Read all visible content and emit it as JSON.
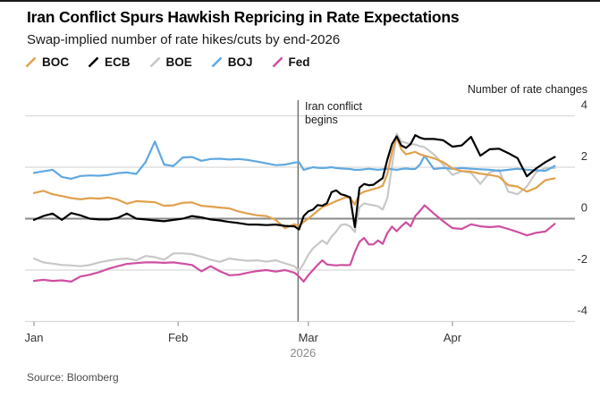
{
  "header": {
    "title": "Iran Conflict Spurs Hawkish Repricing in Rate Expectations",
    "subtitle": "Swap-implied number of rate hikes/cuts by end-2026"
  },
  "legend": [
    {
      "label": "BOC",
      "color": "#E0A14E"
    },
    {
      "label": "ECB",
      "color": "#000000"
    },
    {
      "label": "BOE",
      "color": "#C8C8C8"
    },
    {
      "label": "BOJ",
      "color": "#5FA8E0"
    },
    {
      "label": "Fed",
      "color": "#CE4FA0"
    }
  ],
  "axis_unit_label": "Number of rate changes",
  "annotation": {
    "line1": "Iran conflict",
    "line2": "begins"
  },
  "source": "Source: Bloomberg",
  "chart_data": {
    "type": "line",
    "title": "Iran Conflict Spurs Hawkish Repricing in Rate Expectations",
    "subtitle": "Swap-implied number of rate hikes/cuts by end-2026",
    "ylabel": "Number of rate changes",
    "ylim": [
      -4,
      4
    ],
    "y_ticks": [
      4,
      2,
      0,
      -2,
      -4
    ],
    "grid": true,
    "legend_position": "top-left",
    "x_unit": "days since Jan 1, 2026",
    "x_ticks": [
      {
        "label": "Jan",
        "day": 0
      },
      {
        "label": "Feb",
        "day": 31
      },
      {
        "label": "Mar",
        "day": 59
      },
      {
        "label": "Apr",
        "day": 90
      }
    ],
    "year_label": "2026",
    "event_line": {
      "day": 56.8,
      "label": "Iran conflict begins"
    },
    "days": [
      0,
      2,
      4,
      6,
      8,
      10,
      12,
      14,
      16,
      18,
      20,
      22,
      24,
      26,
      28,
      30,
      32,
      34,
      36,
      38,
      40,
      42,
      44,
      46,
      48,
      50,
      52,
      54,
      56,
      57,
      58,
      59,
      60,
      61,
      62,
      63,
      64,
      65,
      66,
      67,
      68,
      69,
      70,
      71,
      72,
      73,
      74,
      75,
      76,
      77,
      78,
      79,
      80,
      81,
      82,
      83,
      84,
      86,
      88,
      90,
      92,
      94,
      96,
      98,
      100,
      102,
      104,
      106,
      108,
      110,
      112
    ],
    "series": [
      {
        "name": "BOC",
        "color": "#E0A14E",
        "values": [
          1.0,
          1.08,
          0.95,
          0.88,
          0.8,
          0.75,
          0.8,
          0.78,
          0.82,
          0.74,
          0.58,
          0.68,
          0.66,
          0.64,
          0.5,
          0.52,
          0.62,
          0.63,
          0.5,
          0.47,
          0.43,
          0.4,
          0.28,
          0.2,
          0.13,
          0.1,
          -0.05,
          -0.37,
          -0.22,
          -0.28,
          -0.13,
          0.0,
          0.15,
          0.3,
          0.45,
          0.52,
          0.6,
          0.68,
          0.75,
          0.83,
          0.8,
          0.55,
          0.95,
          1.05,
          1.1,
          1.15,
          1.2,
          1.28,
          1.75,
          2.6,
          3.15,
          2.7,
          2.5,
          2.55,
          2.6,
          2.5,
          2.45,
          2.35,
          2.2,
          1.95,
          1.85,
          1.83,
          1.75,
          1.7,
          1.63,
          1.3,
          1.25,
          1.05,
          1.2,
          1.5,
          1.57
        ]
      },
      {
        "name": "ECB",
        "color": "#000000",
        "values": [
          -0.05,
          0.1,
          0.2,
          -0.05,
          0.22,
          0.13,
          0.0,
          -0.03,
          -0.03,
          0.03,
          0.2,
          0.0,
          -0.03,
          -0.07,
          -0.1,
          -0.05,
          0.0,
          0.1,
          0.05,
          -0.03,
          -0.07,
          -0.13,
          -0.17,
          -0.23,
          -0.23,
          -0.25,
          -0.23,
          -0.28,
          -0.3,
          -0.42,
          0.1,
          0.28,
          0.35,
          0.53,
          0.5,
          0.6,
          1.03,
          1.1,
          0.95,
          0.9,
          0.83,
          -0.33,
          1.2,
          1.35,
          1.3,
          1.32,
          1.45,
          1.58,
          2.3,
          2.9,
          3.2,
          2.85,
          2.75,
          2.9,
          3.25,
          3.15,
          3.1,
          3.1,
          3.05,
          2.8,
          2.85,
          3.18,
          2.45,
          2.7,
          2.72,
          2.55,
          2.35,
          1.65,
          1.95,
          2.2,
          2.4
        ]
      },
      {
        "name": "BOE",
        "color": "#C8C8C8",
        "values": [
          -1.55,
          -1.7,
          -1.75,
          -1.8,
          -1.82,
          -1.85,
          -1.8,
          -1.7,
          -1.63,
          -1.58,
          -1.55,
          -1.62,
          -1.45,
          -1.5,
          -1.6,
          -1.35,
          -1.35,
          -1.38,
          -1.48,
          -1.6,
          -1.68,
          -1.55,
          -1.6,
          -1.64,
          -1.62,
          -1.67,
          -1.62,
          -1.74,
          -1.85,
          -2.02,
          -1.75,
          -1.4,
          -1.15,
          -1.0,
          -0.85,
          -0.98,
          -0.7,
          -0.5,
          -0.25,
          -0.22,
          -0.3,
          -0.52,
          0.45,
          0.6,
          0.55,
          0.52,
          0.48,
          0.35,
          0.8,
          2.05,
          3.3,
          3.0,
          2.95,
          2.9,
          2.88,
          2.82,
          2.78,
          2.5,
          2.1,
          1.7,
          1.85,
          1.78,
          1.35,
          1.8,
          1.9,
          1.05,
          0.95,
          1.25,
          1.8,
          1.97,
          1.97
        ]
      },
      {
        "name": "BOJ",
        "color": "#5FA8E0",
        "values": [
          1.78,
          1.84,
          1.9,
          1.62,
          1.55,
          1.66,
          1.68,
          1.67,
          1.7,
          1.77,
          1.8,
          1.74,
          2.2,
          3.0,
          2.1,
          2.05,
          2.38,
          2.4,
          2.25,
          2.32,
          2.33,
          2.3,
          2.32,
          2.28,
          2.22,
          2.15,
          2.08,
          2.1,
          2.18,
          2.2,
          1.9,
          1.95,
          2.0,
          1.98,
          1.97,
          1.98,
          2.0,
          1.97,
          1.95,
          1.94,
          1.93,
          1.9,
          1.9,
          1.92,
          1.94,
          1.92,
          1.9,
          1.92,
          1.94,
          1.92,
          1.9,
          1.93,
          1.95,
          1.93,
          1.93,
          2.1,
          2.45,
          1.93,
          1.97,
          1.94,
          1.97,
          1.94,
          1.92,
          1.9,
          1.86,
          1.9,
          1.94,
          1.9,
          1.88,
          1.86,
          2.05
        ]
      },
      {
        "name": "Fed",
        "color": "#CE4FA0",
        "values": [
          -2.42,
          -2.38,
          -2.42,
          -2.4,
          -2.45,
          -2.25,
          -2.18,
          -2.08,
          -1.95,
          -1.85,
          -1.76,
          -1.73,
          -1.7,
          -1.7,
          -1.72,
          -1.7,
          -1.75,
          -1.8,
          -2.05,
          -1.85,
          -2.05,
          -2.2,
          -2.18,
          -2.1,
          -2.04,
          -2.0,
          -2.06,
          -2.0,
          -2.1,
          -2.25,
          -2.45,
          -2.2,
          -2.0,
          -1.8,
          -1.62,
          -1.78,
          -1.8,
          -1.82,
          -1.8,
          -1.81,
          -1.8,
          -1.3,
          -0.9,
          -0.75,
          -1.0,
          -1.0,
          -0.85,
          -0.98,
          -0.56,
          -0.31,
          -0.49,
          -0.3,
          -0.14,
          -0.3,
          0.1,
          0.3,
          0.52,
          0.2,
          -0.1,
          -0.37,
          -0.4,
          -0.22,
          -0.3,
          -0.33,
          -0.3,
          -0.4,
          -0.52,
          -0.65,
          -0.55,
          -0.5,
          -0.2
        ]
      }
    ]
  }
}
